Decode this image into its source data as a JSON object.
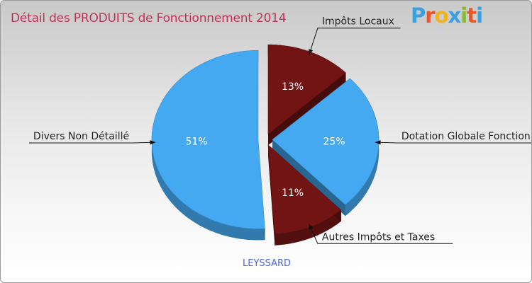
{
  "header": {
    "title": "Détail des PRODUITS de Fonctionnement 2014",
    "logo_text": "Proxiti"
  },
  "footer": {
    "commune": "LEYSSARD"
  },
  "colors": {
    "blue": "#45a9f2",
    "blue_dark": "#2f86c8",
    "red": "#731414",
    "red_dark": "#4e0a0a",
    "title": "#c0305a"
  },
  "chart_data": {
    "type": "pie",
    "title": "Détail des PRODUITS de Fonctionnement 2014",
    "slices": [
      {
        "label": "Impôts Locaux",
        "value": 13,
        "pct_label": "13%",
        "color": "#731414"
      },
      {
        "label": "Dotation Globale Fonction",
        "value": 25,
        "pct_label": "25%",
        "color": "#45a9f2"
      },
      {
        "label": "Autres Impôts et Taxes",
        "value": 11,
        "pct_label": "11%",
        "color": "#731414"
      },
      {
        "label": "Divers Non Détaillé",
        "value": 51,
        "pct_label": "51%",
        "color": "#45a9f2"
      }
    ]
  }
}
